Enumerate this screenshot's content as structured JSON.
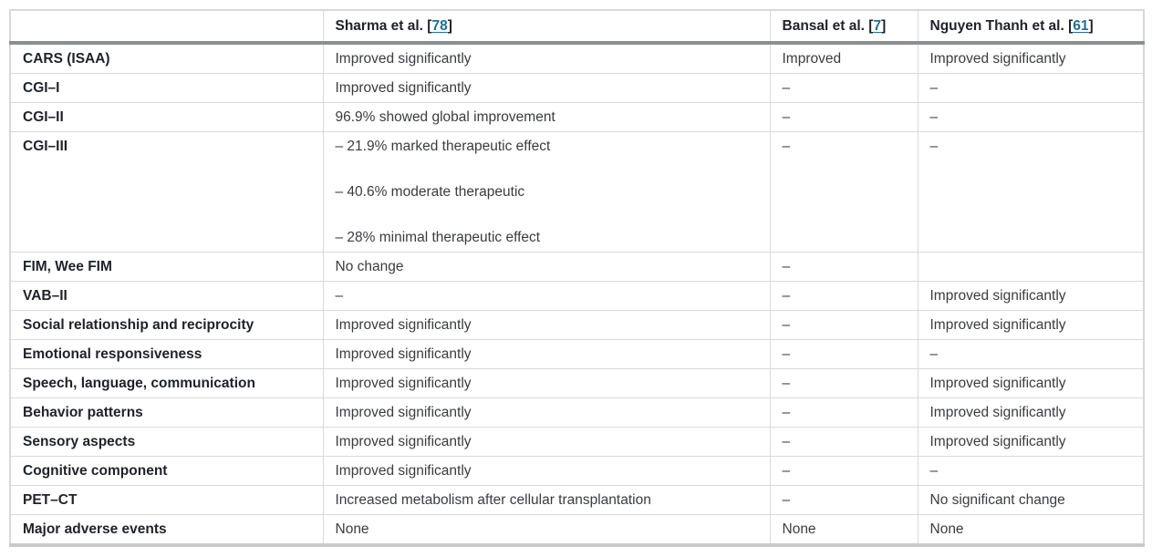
{
  "table": {
    "citation": {
      "open": " [",
      "close": "]"
    },
    "headers": [
      {
        "label": ""
      },
      {
        "label": "Sharma et al.",
        "ref": "78"
      },
      {
        "label": "Bansal et al.",
        "ref": "7"
      },
      {
        "label": "Nguyen Thanh et al.",
        "ref": "61"
      }
    ],
    "rows": [
      {
        "label": "CARS (ISAA)",
        "values": [
          "Improved significantly",
          "Improved",
          "Improved significantly"
        ]
      },
      {
        "label": "CGI–I",
        "values": [
          "Improved significantly",
          "–",
          "–"
        ]
      },
      {
        "label": "CGI–II",
        "values": [
          "96.9% showed global improvement",
          "–",
          "–"
        ]
      },
      {
        "label": "CGI–III",
        "values": [
          [
            "– 21.9% marked therapeutic effect",
            "– 40.6% moderate therapeutic",
            "– 28% minimal therapeutic effect"
          ],
          "–",
          "–"
        ]
      },
      {
        "label": "FIM, Wee FIM",
        "values": [
          "No change",
          "–",
          ""
        ]
      },
      {
        "label": "VAB–II",
        "values": [
          "–",
          "–",
          "Improved significantly"
        ]
      },
      {
        "label": "Social relationship and reciprocity",
        "values": [
          "Improved significantly",
          "–",
          "Improved significantly"
        ]
      },
      {
        "label": "Emotional responsiveness",
        "values": [
          "Improved significantly",
          "–",
          "–"
        ]
      },
      {
        "label": "Speech, language, communication",
        "values": [
          "Improved significantly",
          "–",
          "Improved significantly"
        ]
      },
      {
        "label": "Behavior patterns",
        "values": [
          "Improved significantly",
          "–",
          "Improved significantly"
        ]
      },
      {
        "label": "Sensory aspects",
        "values": [
          "Improved significantly",
          "–",
          "Improved significantly"
        ]
      },
      {
        "label": "Cognitive component",
        "values": [
          "Improved significantly",
          "–",
          "–"
        ]
      },
      {
        "label": "PET–CT",
        "values": [
          "Increased metabolism after cellular transplantation",
          "–",
          "No significant change"
        ]
      },
      {
        "label": "Major adverse events",
        "values": [
          "None",
          "None",
          "None"
        ]
      }
    ],
    "colors": {
      "citation_link": "#1f6f8f",
      "header_rule": "#8c8f90",
      "row_rule": "#dadada",
      "outer_border": "#d8d8d8",
      "bottom_rule": "#c9c9c9",
      "label_text": "#1f2227",
      "cell_text": "#3a3c3e"
    }
  }
}
